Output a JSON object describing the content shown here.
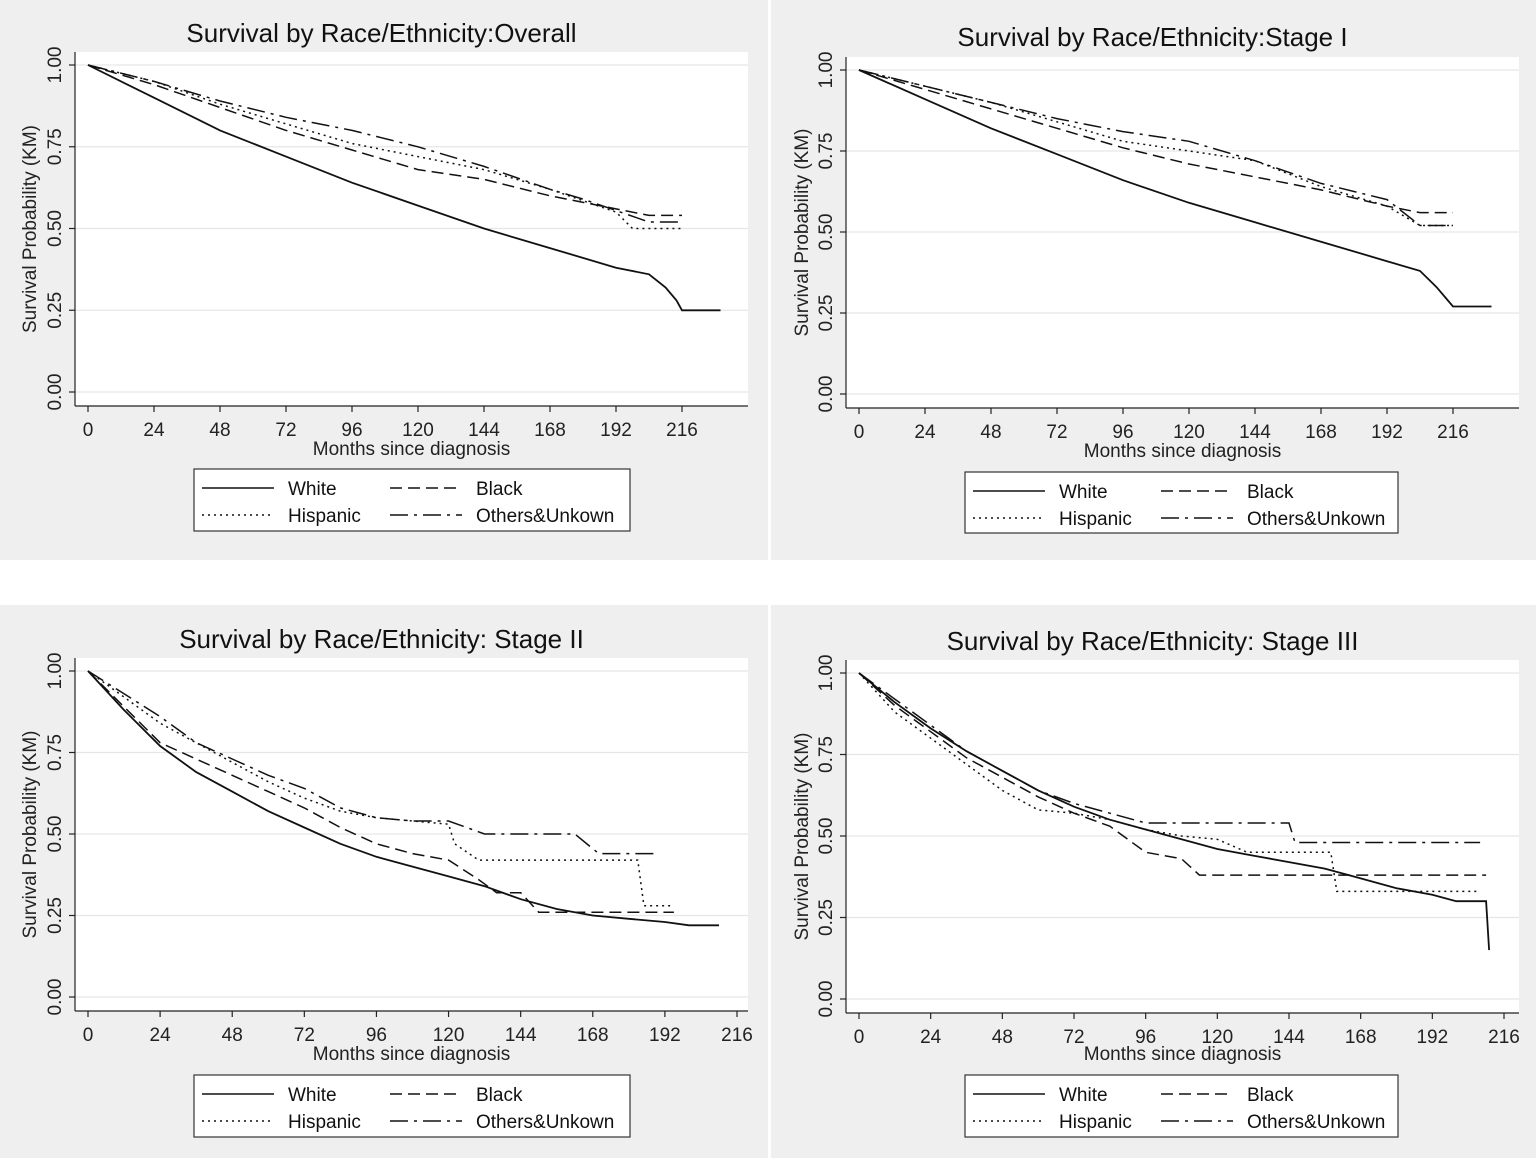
{
  "legend_labels": [
    "White",
    "Black",
    "Hispanic",
    "Others&Unkown"
  ],
  "chart_data": [
    {
      "type": "line",
      "title": "Survival by Race/Ethnicity:Overall",
      "xlabel": "Months since diagnosis",
      "ylabel": "Survival Probability (KM)",
      "xlim": [
        0,
        240
      ],
      "ylim": [
        0,
        1
      ],
      "xticks": [
        "0",
        "24",
        "48",
        "72",
        "96",
        "120",
        "144",
        "168",
        "192",
        "216"
      ],
      "yticks": [
        "0.00",
        "0.25",
        "0.50",
        "0.75",
        "1.00"
      ],
      "grid": true,
      "legend": "bottom",
      "series": [
        {
          "name": "White",
          "style": "solid",
          "x": [
            0,
            24,
            48,
            72,
            96,
            120,
            144,
            168,
            192,
            204,
            210,
            214,
            216,
            230
          ],
          "y": [
            1.0,
            0.9,
            0.8,
            0.72,
            0.64,
            0.57,
            0.5,
            0.44,
            0.38,
            0.36,
            0.32,
            0.28,
            0.25,
            0.25
          ]
        },
        {
          "name": "Black",
          "style": "dashed",
          "x": [
            0,
            24,
            48,
            72,
            96,
            120,
            144,
            168,
            192,
            204,
            216
          ],
          "y": [
            1.0,
            0.94,
            0.87,
            0.8,
            0.74,
            0.68,
            0.65,
            0.6,
            0.56,
            0.54,
            0.54
          ]
        },
        {
          "name": "Hispanic",
          "style": "dotted",
          "x": [
            0,
            24,
            48,
            72,
            96,
            120,
            144,
            168,
            192,
            198,
            216
          ],
          "y": [
            1.0,
            0.95,
            0.88,
            0.82,
            0.76,
            0.72,
            0.68,
            0.62,
            0.55,
            0.5,
            0.5
          ]
        },
        {
          "name": "Others&Unkown",
          "style": "dashdot",
          "x": [
            0,
            24,
            48,
            72,
            96,
            120,
            144,
            168,
            180,
            204,
            216
          ],
          "y": [
            1.0,
            0.95,
            0.89,
            0.84,
            0.8,
            0.75,
            0.69,
            0.62,
            0.59,
            0.52,
            0.52
          ]
        }
      ]
    },
    {
      "type": "line",
      "title": "Survival by Race/Ethnicity:Stage I",
      "xlabel": "Months since diagnosis",
      "ylabel": "Survival Probability (KM)",
      "xlim": [
        0,
        240
      ],
      "ylim": [
        0,
        1
      ],
      "xticks": [
        "0",
        "24",
        "48",
        "72",
        "96",
        "120",
        "144",
        "168",
        "192",
        "216"
      ],
      "yticks": [
        "0.00",
        "0.25",
        "0.50",
        "0.75",
        "1.00"
      ],
      "grid": true,
      "legend": "bottom",
      "series": [
        {
          "name": "White",
          "style": "solid",
          "x": [
            0,
            24,
            48,
            72,
            96,
            120,
            144,
            168,
            192,
            204,
            210,
            214,
            216,
            230
          ],
          "y": [
            1.0,
            0.91,
            0.82,
            0.74,
            0.66,
            0.59,
            0.53,
            0.47,
            0.41,
            0.38,
            0.33,
            0.29,
            0.27,
            0.27
          ]
        },
        {
          "name": "Black",
          "style": "dashed",
          "x": [
            0,
            24,
            48,
            72,
            96,
            120,
            144,
            168,
            192,
            204,
            216
          ],
          "y": [
            1.0,
            0.94,
            0.88,
            0.82,
            0.76,
            0.71,
            0.67,
            0.63,
            0.58,
            0.56,
            0.56
          ]
        },
        {
          "name": "Hispanic",
          "style": "dotted",
          "x": [
            0,
            24,
            48,
            72,
            96,
            120,
            144,
            168,
            192,
            204,
            216
          ],
          "y": [
            1.0,
            0.95,
            0.9,
            0.84,
            0.78,
            0.75,
            0.72,
            0.64,
            0.58,
            0.52,
            0.52
          ]
        },
        {
          "name": "Others&Unkown",
          "style": "dashdot",
          "x": [
            0,
            24,
            48,
            72,
            96,
            120,
            144,
            168,
            192,
            204,
            216
          ],
          "y": [
            1.0,
            0.95,
            0.9,
            0.85,
            0.81,
            0.78,
            0.72,
            0.65,
            0.6,
            0.52,
            0.52
          ]
        }
      ]
    },
    {
      "type": "line",
      "title": "Survival by Race/Ethnicity: Stage II",
      "xlabel": "Months since diagnosis",
      "ylabel": "Survival Probability (KM)",
      "xlim": [
        0,
        216
      ],
      "ylim": [
        0,
        1
      ],
      "xticks": [
        "0",
        "24",
        "48",
        "72",
        "96",
        "120",
        "144",
        "168",
        "192",
        "216"
      ],
      "yticks": [
        "0.00",
        "0.25",
        "0.50",
        "0.75",
        "1.00"
      ],
      "grid": true,
      "legend": "bottom",
      "series": [
        {
          "name": "White",
          "style": "solid",
          "x": [
            0,
            12,
            24,
            36,
            48,
            60,
            72,
            84,
            96,
            108,
            120,
            132,
            144,
            156,
            168,
            180,
            192,
            200,
            210
          ],
          "y": [
            1.0,
            0.88,
            0.77,
            0.69,
            0.63,
            0.57,
            0.52,
            0.47,
            0.43,
            0.4,
            0.37,
            0.34,
            0.3,
            0.27,
            0.25,
            0.24,
            0.23,
            0.22,
            0.22
          ]
        },
        {
          "name": "Black",
          "style": "dashed",
          "x": [
            0,
            24,
            48,
            60,
            72,
            84,
            96,
            108,
            120,
            130,
            136,
            144,
            150,
            168,
            195
          ],
          "y": [
            1.0,
            0.78,
            0.68,
            0.63,
            0.58,
            0.52,
            0.47,
            0.44,
            0.42,
            0.36,
            0.32,
            0.32,
            0.26,
            0.26,
            0.26
          ]
        },
        {
          "name": "Hispanic",
          "style": "dotted",
          "x": [
            0,
            24,
            48,
            60,
            72,
            84,
            96,
            108,
            120,
            122,
            130,
            150,
            183,
            185,
            195
          ],
          "y": [
            1.0,
            0.84,
            0.72,
            0.66,
            0.61,
            0.57,
            0.55,
            0.54,
            0.53,
            0.47,
            0.42,
            0.42,
            0.42,
            0.28,
            0.28
          ]
        },
        {
          "name": "Others&Unkown",
          "style": "dashdot",
          "x": [
            0,
            24,
            36,
            48,
            60,
            72,
            84,
            96,
            108,
            120,
            132,
            144,
            162,
            170,
            190
          ],
          "y": [
            1.0,
            0.86,
            0.78,
            0.73,
            0.68,
            0.64,
            0.58,
            0.55,
            0.54,
            0.54,
            0.5,
            0.5,
            0.5,
            0.44,
            0.44
          ]
        }
      ]
    },
    {
      "type": "line",
      "title": "Survival by Race/Ethnicity: Stage III",
      "xlabel": "Months since diagnosis",
      "ylabel": "Survival Probability (KM)",
      "xlim": [
        0,
        216
      ],
      "ylim": [
        0,
        1
      ],
      "xticks": [
        "0",
        "24",
        "48",
        "72",
        "96",
        "120",
        "144",
        "168",
        "192",
        "216"
      ],
      "yticks": [
        "0.00",
        "0.25",
        "0.50",
        "0.75",
        "1.00"
      ],
      "grid": true,
      "legend": "bottom",
      "series": [
        {
          "name": "White",
          "style": "solid",
          "x": [
            0,
            12,
            24,
            36,
            48,
            60,
            72,
            84,
            96,
            108,
            120,
            132,
            144,
            156,
            168,
            180,
            192,
            200,
            210,
            211
          ],
          "y": [
            1.0,
            0.91,
            0.83,
            0.76,
            0.7,
            0.64,
            0.59,
            0.55,
            0.52,
            0.49,
            0.46,
            0.44,
            0.42,
            0.4,
            0.37,
            0.34,
            0.32,
            0.3,
            0.3,
            0.15
          ]
        },
        {
          "name": "Black",
          "style": "dashed",
          "x": [
            0,
            12,
            24,
            36,
            48,
            60,
            72,
            84,
            90,
            96,
            108,
            114,
            144,
            168,
            210
          ],
          "y": [
            1.0,
            0.9,
            0.82,
            0.74,
            0.68,
            0.62,
            0.57,
            0.53,
            0.49,
            0.45,
            0.43,
            0.38,
            0.38,
            0.38,
            0.38
          ]
        },
        {
          "name": "Hispanic",
          "style": "dotted",
          "x": [
            0,
            12,
            24,
            36,
            48,
            60,
            72,
            84,
            96,
            108,
            120,
            130,
            158,
            160,
            208
          ],
          "y": [
            1.0,
            0.88,
            0.8,
            0.72,
            0.64,
            0.58,
            0.57,
            0.55,
            0.52,
            0.5,
            0.49,
            0.45,
            0.45,
            0.33,
            0.33
          ]
        },
        {
          "name": "Others&Unkown",
          "style": "dashdot",
          "x": [
            0,
            12,
            24,
            36,
            48,
            60,
            72,
            84,
            96,
            144,
            146,
            208
          ],
          "y": [
            1.0,
            0.92,
            0.84,
            0.76,
            0.7,
            0.64,
            0.6,
            0.57,
            0.54,
            0.54,
            0.48,
            0.48
          ]
        }
      ]
    }
  ]
}
